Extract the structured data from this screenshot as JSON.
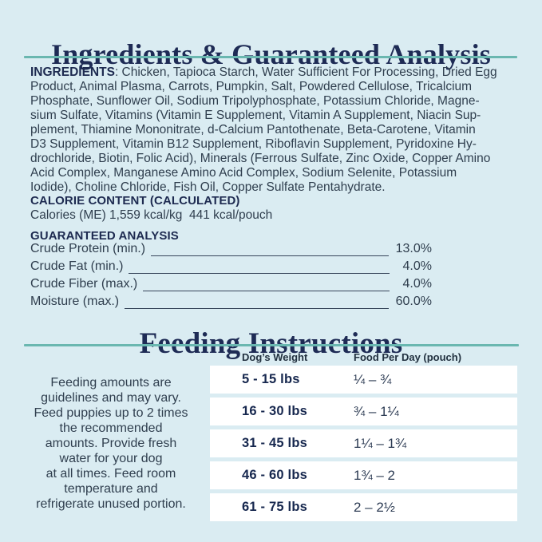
{
  "colors": {
    "background": "#daecf2",
    "accent_teal": "#6ab7b0",
    "navy": "#1e2b55",
    "body_text": "#2f3e4e",
    "row_white": "#ffffff"
  },
  "ingredients_section": {
    "title": "Ingredients & Guaranteed Analysis",
    "ingredients_label": "INGREDIENTS",
    "ingredients_line1_rest": ": Chicken, Tapioca Starch, Water Sufficient For Processing, Dried Egg",
    "ingredients_lines": [
      "Product, Animal Plasma, Carrots, Pumpkin, Salt, Powdered Cellulose, Tricalcium",
      "Phosphate, Sunflower Oil, Sodium Tripolyphosphate, Potassium Chloride, Magne-",
      "sium Sulfate, Vitamins (Vitamin E Supplement, Vitamin A Supplement, Niacin Sup-",
      "plement, Thiamine Mononitrate, d-Calcium Pantothenate, Beta-Carotene, Vitamin",
      "D3 Supplement, Vitamin B12 Supplement, Riboflavin Supplement, Pyridoxine Hy-",
      "drochloride, Biotin, Folic Acid), Minerals (Ferrous Sulfate, Zinc Oxide, Copper Amino",
      "Acid Complex, Manganese Amino Acid Complex, Sodium Selenite, Potassium",
      "Iodide), Choline Chloride, Fish Oil, Copper Sulfate Pentahydrate."
    ],
    "calorie_heading": "CALORIE CONTENT (CALCULATED)",
    "calorie_line": "Calories (ME) 1,559 kcal/kg  441 kcal/pouch",
    "guaranteed_heading": "GUARANTEED ANALYSIS",
    "guaranteed_rows": [
      {
        "label": "Crude Protein (min.)",
        "value": "13.0%"
      },
      {
        "label": "Crude Fat (min.)",
        "value": "4.0%"
      },
      {
        "label": "Crude Fiber (max.)",
        "value": "4.0%"
      },
      {
        "label": "Moisture (max.)",
        "value": "60.0%"
      }
    ]
  },
  "feeding_section": {
    "title": "Feeding Instructions",
    "note_lines": [
      "Feeding amounts are",
      "guidelines and may vary.",
      "Feed puppies up to 2 times",
      "the recommended",
      "amounts. Provide fresh",
      "water for your dog",
      "at all times. Feed room",
      "temperature and",
      "refrigerate unused portion."
    ],
    "columns": {
      "weight": "Dog’s Weight",
      "food": "Food Per Day (pouch)"
    },
    "rows": [
      {
        "weight": "5 - 15 lbs",
        "amount": "¼ – ¾"
      },
      {
        "weight": "16 - 30 lbs",
        "amount": "¾ – 1¼"
      },
      {
        "weight": "31 - 45 lbs",
        "amount": "1¼ – 1¾"
      },
      {
        "weight": "46 - 60 lbs",
        "amount": "1¾ – 2"
      },
      {
        "weight": "61 - 75 lbs",
        "amount": "2 – 2½"
      }
    ]
  }
}
